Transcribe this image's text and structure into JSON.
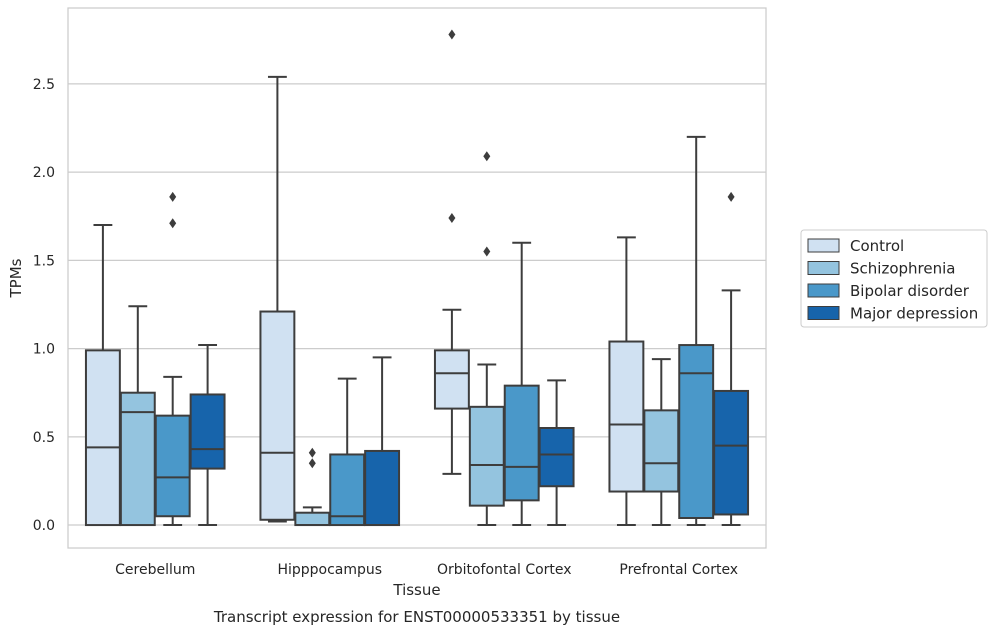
{
  "chart_data": {
    "type": "box",
    "xlabel": "Tissue",
    "ylabel": "TPMs",
    "caption": "Transcript expression for ENST00000533351 by tissue",
    "ylim": [
      -0.13,
      2.93
    ],
    "yticks": [
      0.0,
      0.5,
      1.0,
      1.5,
      2.0,
      2.5
    ],
    "ytick_labels": [
      "0.0",
      "0.5",
      "1.0",
      "1.5",
      "2.0",
      "2.5"
    ],
    "grid": true,
    "legend_position": "right",
    "categories": [
      "Cerebellum",
      "Hipppocampus",
      "Orbitofontal Cortex",
      "Prefrontal Cortex"
    ],
    "series": [
      {
        "name": "Control",
        "color": "#d0e1f2",
        "boxes": [
          {
            "min": 0.0,
            "q1": 0.0,
            "median": 0.44,
            "q3": 0.99,
            "max": 1.7,
            "outliers": []
          },
          {
            "min": 0.02,
            "q1": 0.03,
            "median": 0.41,
            "q3": 1.21,
            "max": 2.54,
            "outliers": []
          },
          {
            "min": 0.29,
            "q1": 0.66,
            "median": 0.86,
            "q3": 0.99,
            "max": 1.22,
            "outliers": [
              1.74,
              2.78
            ]
          },
          {
            "min": 0.0,
            "q1": 0.19,
            "median": 0.57,
            "q3": 1.04,
            "max": 1.63,
            "outliers": []
          }
        ]
      },
      {
        "name": "Schizophrenia",
        "color": "#94c4df",
        "boxes": [
          {
            "min": 0.0,
            "q1": 0.0,
            "median": 0.64,
            "q3": 0.75,
            "max": 1.24,
            "outliers": []
          },
          {
            "min": 0.0,
            "q1": 0.0,
            "median": 0.0,
            "q3": 0.07,
            "max": 0.1,
            "outliers": [
              0.35,
              0.41
            ]
          },
          {
            "min": 0.0,
            "q1": 0.11,
            "median": 0.34,
            "q3": 0.67,
            "max": 0.91,
            "outliers": [
              1.55,
              2.09
            ]
          },
          {
            "min": 0.0,
            "q1": 0.19,
            "median": 0.35,
            "q3": 0.65,
            "max": 0.94,
            "outliers": []
          }
        ]
      },
      {
        "name": "Bipolar disorder",
        "color": "#4a98c9",
        "boxes": [
          {
            "min": 0.0,
            "q1": 0.05,
            "median": 0.27,
            "q3": 0.62,
            "max": 0.84,
            "outliers": [
              1.71,
              1.86
            ]
          },
          {
            "min": 0.0,
            "q1": 0.0,
            "median": 0.05,
            "q3": 0.4,
            "max": 0.83,
            "outliers": []
          },
          {
            "min": 0.0,
            "q1": 0.14,
            "median": 0.33,
            "q3": 0.79,
            "max": 1.6,
            "outliers": []
          },
          {
            "min": 0.0,
            "q1": 0.04,
            "median": 0.86,
            "q3": 1.02,
            "max": 2.2,
            "outliers": []
          }
        ]
      },
      {
        "name": "Major depression",
        "color": "#1764ab",
        "boxes": [
          {
            "min": 0.0,
            "q1": 0.32,
            "median": 0.43,
            "q3": 0.74,
            "max": 1.02,
            "outliers": []
          },
          {
            "min": 0.0,
            "q1": 0.0,
            "median": 0.0,
            "q3": 0.42,
            "max": 0.95,
            "outliers": []
          },
          {
            "min": 0.0,
            "q1": 0.22,
            "median": 0.4,
            "q3": 0.55,
            "max": 0.82,
            "outliers": []
          },
          {
            "min": 0.0,
            "q1": 0.06,
            "median": 0.45,
            "q3": 0.76,
            "max": 1.33,
            "outliers": [
              1.86
            ]
          }
        ]
      }
    ]
  }
}
